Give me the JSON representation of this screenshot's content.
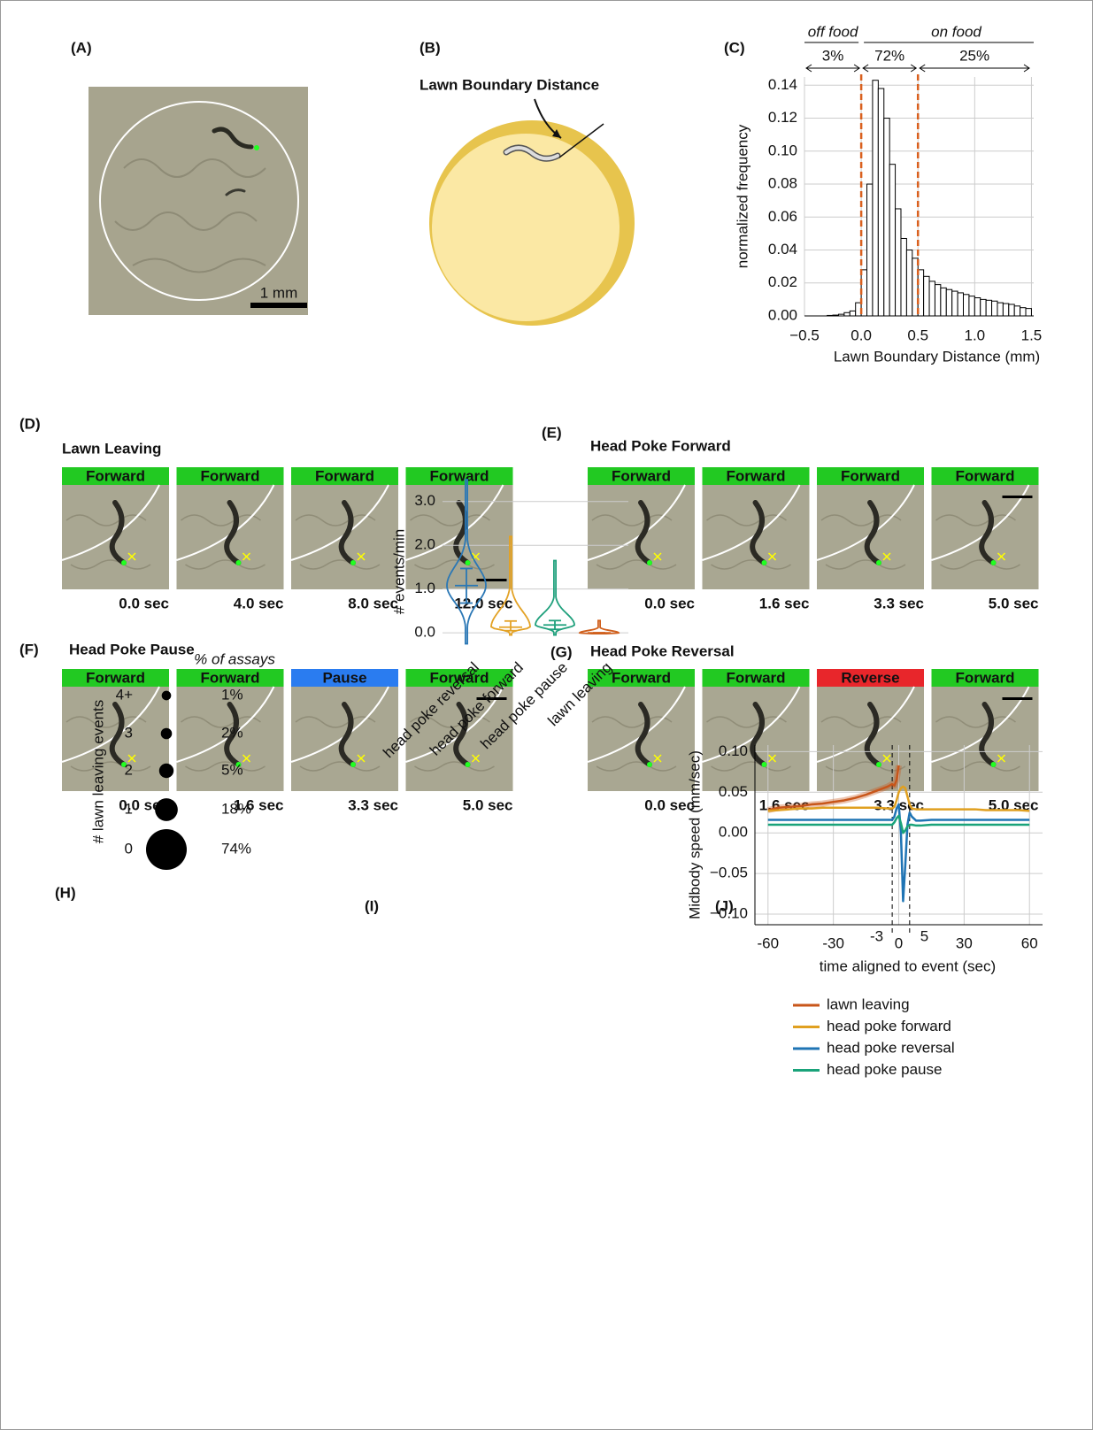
{
  "panels": {
    "A": {
      "label": "(A)",
      "scale_bar": "1 mm"
    },
    "B": {
      "label": "(B)",
      "annotation": "Lawn Boundary Distance"
    },
    "D": {
      "label": "(D)",
      "title": "Lawn Leaving",
      "frames": [
        {
          "state": "Forward",
          "color": "#22c922",
          "time": "0.0 sec"
        },
        {
          "state": "Forward",
          "color": "#22c922",
          "time": "4.0 sec"
        },
        {
          "state": "Forward",
          "color": "#22c922",
          "time": "8.0 sec"
        },
        {
          "state": "Forward",
          "color": "#22c922",
          "time": "12.0 sec"
        }
      ]
    },
    "E": {
      "label": "(E)",
      "title": "Head Poke Forward",
      "frames": [
        {
          "state": "Forward",
          "color": "#22c922",
          "time": "0.0 sec"
        },
        {
          "state": "Forward",
          "color": "#22c922",
          "time": "1.6 sec"
        },
        {
          "state": "Forward",
          "color": "#22c922",
          "time": "3.3 sec"
        },
        {
          "state": "Forward",
          "color": "#22c922",
          "time": "5.0 sec"
        }
      ]
    },
    "F": {
      "label": "(F)",
      "title": "Head Poke Pause",
      "frames": [
        {
          "state": "Forward",
          "color": "#22c922",
          "time": "0.0 sec"
        },
        {
          "state": "Forward",
          "color": "#22c922",
          "time": "1.6 sec"
        },
        {
          "state": "Pause",
          "color": "#2a7cf0",
          "time": "3.3 sec"
        },
        {
          "state": "Forward",
          "color": "#22c922",
          "time": "5.0 sec"
        }
      ]
    },
    "G": {
      "label": "(G)",
      "title": "Head Poke Reversal",
      "frames": [
        {
          "state": "Forward",
          "color": "#22c922",
          "time": "0.0 sec"
        },
        {
          "state": "Forward",
          "color": "#22c922",
          "time": "1.6 sec"
        },
        {
          "state": "Reverse",
          "color": "#e8262b",
          "time": "3.3 sec"
        },
        {
          "state": "Forward",
          "color": "#22c922",
          "time": "5.0 sec"
        }
      ]
    }
  },
  "chart_data": [
    {
      "type": "histogram",
      "label": "(C)",
      "xlabel": "Lawn Boundary Distance (mm)",
      "ylabel": "normalized frequency",
      "bins": [
        -0.5,
        -0.45,
        -0.4,
        -0.35,
        -0.3,
        -0.25,
        -0.2,
        -0.15,
        -0.1,
        -0.05,
        0,
        0.05,
        0.1,
        0.15,
        0.2,
        0.25,
        0.3,
        0.35,
        0.4,
        0.45,
        0.5,
        0.55,
        0.6,
        0.65,
        0.7,
        0.75,
        0.8,
        0.85,
        0.9,
        0.95,
        1,
        1.05,
        1.1,
        1.15,
        1.2,
        1.25,
        1.3,
        1.35,
        1.4,
        1.45,
        1.5
      ],
      "values": [
        0,
        0,
        0,
        0,
        0.0003,
        0.0005,
        0.001,
        0.002,
        0.003,
        0.008,
        0.028,
        0.08,
        0.143,
        0.138,
        0.12,
        0.092,
        0.065,
        0.047,
        0.04,
        0.035,
        0.028,
        0.024,
        0.021,
        0.019,
        0.017,
        0.016,
        0.015,
        0.014,
        0.013,
        0.012,
        0.011,
        0.01,
        0.0095,
        0.009,
        0.008,
        0.0075,
        0.007,
        0.006,
        0.005,
        0.0045
      ],
      "color": "#ffffff",
      "vlines": [
        0,
        0.5
      ],
      "vline_color": "#d9601e",
      "header_labels": [
        "off food",
        "on food"
      ],
      "percent_labels": [
        "3%",
        "72%",
        "25%"
      ],
      "xlim": [
        -0.5,
        1.52
      ],
      "ylim": [
        0,
        0.145
      ],
      "xticks": [
        {
          "value": -0.5,
          "label": "−0.5"
        },
        {
          "value": 0,
          "label": "0.0"
        },
        0.5,
        {
          "value": 1,
          "label": "1.0"
        },
        1.5
      ],
      "yticks": [
        {
          "value": 0,
          "label": "0.00"
        },
        0.02,
        0.04,
        0.06,
        0.08,
        {
          "value": 0.1,
          "label": "0.10"
        },
        0.12,
        0.14
      ],
      "grid": true
    },
    {
      "type": "bubble",
      "label": "(H)",
      "ylabel": "# lawn leaving events",
      "size_label": "% of assays",
      "categories": [
        "4+",
        "3",
        "2",
        "1",
        "0"
      ],
      "values": [
        1,
        2,
        5,
        18,
        74
      ],
      "value_labels": [
        "1%",
        "2%",
        "5%",
        "18%",
        "74%"
      ],
      "color": "#000000"
    },
    {
      "type": "violin",
      "label": "(I)",
      "ylabel": "# events/min",
      "categories": [
        "head poke reversal",
        "head poke forward",
        "head poke pause",
        "lawn leaving"
      ],
      "violins": [
        {
          "color": "#2a77b5",
          "min": -0.25,
          "max": 3.5,
          "median": 1.08,
          "lower": 0.68,
          "upper": 1.47
        },
        {
          "color": "#e3a225",
          "min": -0.05,
          "max": 2.2,
          "median": 0.13,
          "lower": 0.05,
          "upper": 0.27
        },
        {
          "color": "#1fa07c",
          "min": -0.05,
          "max": 1.65,
          "median": 0.18,
          "lower": 0.08,
          "upper": 0.28
        },
        {
          "color": "#d0601d",
          "min": -0.02,
          "max": 0.28,
          "median": 0,
          "lower": 0,
          "upper": 0
        }
      ],
      "ylim": [
        -0.3,
        3.5
      ],
      "yticks": [
        {
          "value": 0,
          "label": "0.0"
        },
        {
          "value": 1,
          "label": "1.0"
        },
        {
          "value": 2,
          "label": "2.0"
        },
        {
          "value": 3,
          "label": "3.0"
        }
      ],
      "grid": true
    },
    {
      "type": "line",
      "label": "(J)",
      "xlabel": "time aligned to event (sec)",
      "ylabel": "Midbody speed (mm/sec)",
      "x": [
        -60,
        -55,
        -50,
        -45,
        -40,
        -35,
        -30,
        -25,
        -20,
        -15,
        -10,
        -5,
        -3,
        -2,
        -1,
        0,
        1,
        2,
        3,
        4,
        5,
        6,
        8,
        10,
        15,
        20,
        25,
        30,
        35,
        40,
        45,
        50,
        55,
        60
      ],
      "series": [
        {
          "name": "lawn leaving",
          "color": "#c8561a",
          "values": [
            0.028,
            0.031,
            0.032,
            0.033,
            0.035,
            0.036,
            0.038,
            0.04,
            0.043,
            0.047,
            0.052,
            0.057,
            0.06,
            0.058,
            0.065,
            0.083,
            null,
            null,
            null,
            null,
            null,
            null,
            null,
            null,
            null,
            null,
            null,
            null,
            null,
            null,
            null,
            null,
            null,
            null
          ]
        },
        {
          "name": "head poke forward",
          "color": "#e0a020",
          "values": [
            0.027,
            0.028,
            0.029,
            0.03,
            0.03,
            0.031,
            0.031,
            0.031,
            0.031,
            0.031,
            0.031,
            0.03,
            0.03,
            0.032,
            0.04,
            0.05,
            0.055,
            0.057,
            0.055,
            0.045,
            0.035,
            0.03,
            0.029,
            0.029,
            0.029,
            0.029,
            0.029,
            0.029,
            0.029,
            0.028,
            0.028,
            0.028,
            0.028,
            0.027
          ]
        },
        {
          "name": "head poke reversal",
          "color": "#1f74b4",
          "values": [
            0.016,
            0.016,
            0.016,
            0.016,
            0.016,
            0.016,
            0.016,
            0.016,
            0.016,
            0.016,
            0.016,
            0.016,
            0.016,
            0.02,
            0.03,
            0.035,
            0,
            -0.084,
            -0.04,
            0.01,
            0.025,
            0.02,
            0.015,
            0.015,
            0.016,
            0.016,
            0.016,
            0.016,
            0.016,
            0.016,
            0.016,
            0.016,
            0.016,
            0.016
          ]
        },
        {
          "name": "head poke pause",
          "color": "#1aa37a",
          "values": [
            0.01,
            0.01,
            0.01,
            0.01,
            0.01,
            0.01,
            0.01,
            0.01,
            0.01,
            0.01,
            0.01,
            0.01,
            0.01,
            0.013,
            0.018,
            0.021,
            0.012,
            0,
            0.003,
            0.008,
            0.01,
            0.01,
            0.009,
            0.009,
            0.01,
            0.01,
            0.01,
            0.01,
            0.01,
            0.01,
            0.01,
            0.01,
            0.01,
            0.01
          ]
        }
      ],
      "vlines": [
        -3,
        5
      ],
      "xlim": [
        -66,
        66
      ],
      "ylim": [
        -0.113,
        0.108
      ],
      "xticks": [
        -60,
        -30,
        0,
        30,
        60
      ],
      "yticks": [
        {
          "value": -0.1,
          "label": "−0.10"
        },
        {
          "value": -0.05,
          "label": "−0.05"
        },
        {
          "value": 0,
          "label": "0.00"
        },
        0.05,
        {
          "value": 0.1,
          "label": "0.10"
        }
      ],
      "grid": true
    }
  ]
}
